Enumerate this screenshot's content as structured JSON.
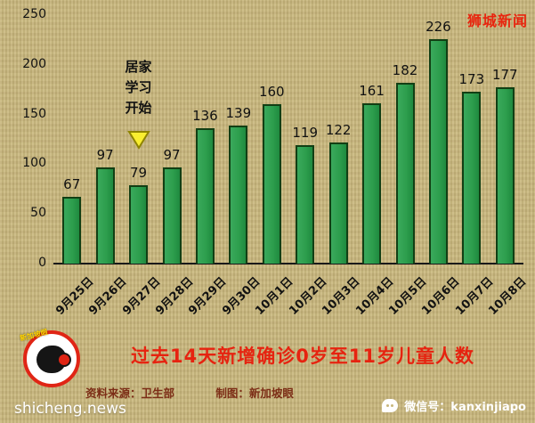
{
  "watermark": "狮城新闻",
  "chart_data": {
    "type": "bar",
    "categories": [
      "9月25日",
      "9月26日",
      "9月27日",
      "9月28日",
      "9月29日",
      "9月30日",
      "10月1日",
      "10月2日",
      "10月3日",
      "10月4日",
      "10月5日",
      "10月6日",
      "10月7日",
      "10月8日"
    ],
    "values": [
      67,
      97,
      79,
      97,
      136,
      139,
      160,
      119,
      122,
      161,
      182,
      226,
      173,
      177
    ],
    "title": "过去14天新增确诊0岁至11岁儿童人数",
    "xlabel": "",
    "ylabel": "",
    "ylim": [
      0,
      250
    ],
    "yticks": [
      0,
      50,
      100,
      150,
      200,
      250
    ],
    "grid": false,
    "legend": false,
    "bar_color": "#2d9e4d",
    "bar_border_color": "#123f14",
    "annotation": {
      "lines": [
        "居家",
        "学习",
        "开始"
      ],
      "target_category": "9月27日",
      "marker": "yellow-down-triangle",
      "marker_color": "#f9ee30"
    }
  },
  "footer": {
    "title": "过去14天新增确诊0岁至11岁儿童人数",
    "source": "资料来源：卫生部",
    "credit": "制图：新加坡眼",
    "website": "shicheng.news",
    "wechat_label": "微信号：kanxinjiapo"
  },
  "logo": {
    "tag": "新加坡眼"
  },
  "colors": {
    "accent_red": "#e8240e",
    "source_text": "#7c2d16",
    "background_tan": "#c9b77c",
    "bar_green": "#2d9e4d"
  }
}
